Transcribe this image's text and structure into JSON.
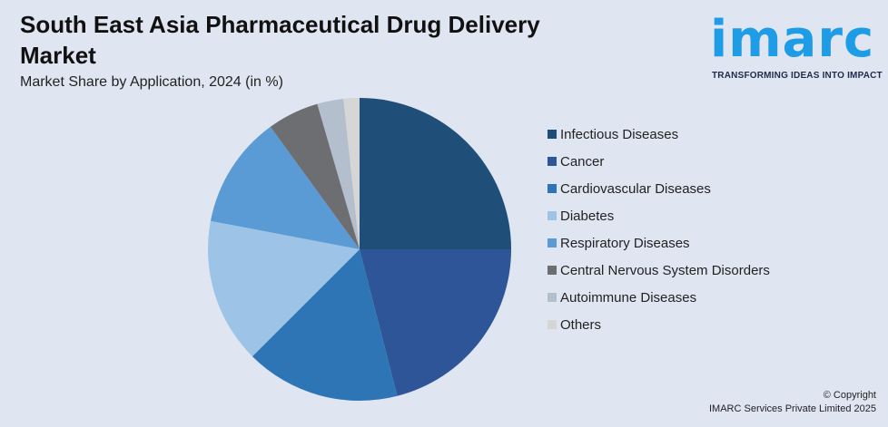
{
  "header": {
    "title": "South East Asia Pharmaceutical Drug Delivery Market",
    "subtitle": "Market Share by Application, 2024 (in %)"
  },
  "logo": {
    "word": "imarc",
    "tagline": "TRANSFORMING IDEAS INTO IMPACT"
  },
  "footer": {
    "line1": "© Copyright",
    "line2": "IMARC Services Private Limited 2025"
  },
  "chart_data": {
    "type": "pie",
    "title": "South East Asia Pharmaceutical Drug Delivery Market",
    "subtitle": "Market Share by Application, 2024 (in %)",
    "legend_position": "right",
    "start_angle": "top, clockwise",
    "slices": [
      {
        "label": "Infectious Diseases",
        "value": 25,
        "color": "#1f4e79"
      },
      {
        "label": "Cancer",
        "value": 21,
        "color": "#2e5597"
      },
      {
        "label": "Cardiovascular Diseases",
        "value": 16.5,
        "color": "#2e75b6"
      },
      {
        "label": "Diabetes",
        "value": 15.5,
        "color": "#9dc3e6"
      },
      {
        "label": "Respiratory Diseases",
        "value": 12,
        "color": "#5b9bd5"
      },
      {
        "label": "Central Nervous System Disorders",
        "value": 5.5,
        "color": "#6d6e71"
      },
      {
        "label": "Autoimmune Diseases",
        "value": 2.8,
        "color": "#b4bfcd"
      },
      {
        "label": "Others",
        "value": 1.7,
        "color": "#d6d6d6"
      }
    ]
  }
}
